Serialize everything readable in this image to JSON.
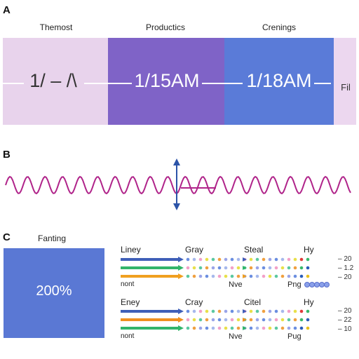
{
  "panel_a": {
    "letter": "A",
    "headers": [
      "Themost",
      "Productics",
      "Crenings"
    ],
    "cells": [
      "1/ – /\\",
      "1/15AM",
      "1/18AM",
      "Fil"
    ],
    "colors": [
      "#e8d3ec",
      "#7f63c7",
      "#5a7bd8",
      "#ecd7ef"
    ]
  },
  "panel_b": {
    "letter": "B",
    "wave_color": "#b0248a",
    "arrow_color": "#2c54a8"
  },
  "panel_c": {
    "letter": "C",
    "box_title": "Fanting",
    "box_value": "200%",
    "box_color": "#5a78d4",
    "group1": {
      "headers": [
        "Liney",
        "Gray",
        "Steal",
        "Hy"
      ],
      "values": [
        "– 20",
        "– 1.2",
        "– 20"
      ],
      "footer": [
        "nont",
        "Nve",
        "Png"
      ],
      "arrow_colors": [
        "#3f5fb8",
        "#32b56a",
        "#f0a020"
      ]
    },
    "group2": {
      "headers": [
        "Eney",
        "Cray",
        "Citel",
        "Hy"
      ],
      "values": [
        "– 20",
        "– 22",
        "– 10"
      ],
      "footer": [
        "nont",
        "Nve",
        "Pug"
      ],
      "arrow_colors": [
        "#3f5fb8",
        "#f09020",
        "#32b56a"
      ]
    }
  }
}
